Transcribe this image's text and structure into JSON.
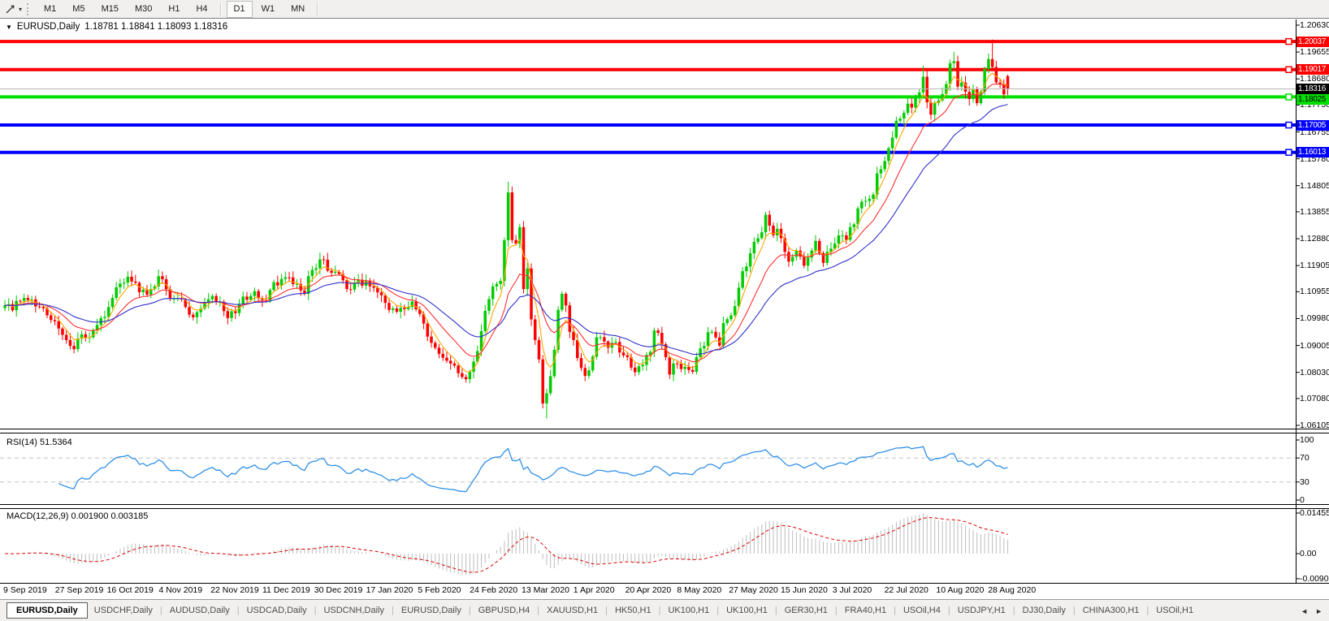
{
  "toolbar": {
    "timeframes": [
      "M1",
      "M5",
      "M15",
      "M30",
      "H1",
      "H4",
      "D1",
      "W1",
      "MN"
    ],
    "active_timeframe": "D1"
  },
  "chart_header": {
    "title": "EURUSD,Daily",
    "ohlc": "1.18781 1.18841 1.18093 1.18316"
  },
  "indicators": {
    "rsi_label": "RSI(14)",
    "rsi_value": "51.5364",
    "macd_label": "MACD(12,26,9)",
    "macd_value": "0.001900",
    "macd_signal": "0.003185"
  },
  "chart_data": {
    "type": "candlestick",
    "symbol": "EURUSD",
    "timeframe": "Daily",
    "last_ohlc": {
      "open": "1.18781",
      "high": "1.18841",
      "low": "1.18093",
      "close": "1.18316"
    },
    "colors": {
      "bull": "#00CC00",
      "bear": "#FF0000",
      "ma_fast": "#FFA500",
      "ma_mid": "#FF3030",
      "ma_slow": "#3030CC",
      "rsi": "#3090E8",
      "rsi_levels": "#C0C0C0",
      "macd_hist": "#BDBDBD",
      "macd_signal": "#DD0000",
      "bid_line": "#B8B8B8",
      "frame": "#000000"
    },
    "price_axis": {
      "max": 1.2063,
      "min": 1.06105,
      "ticks": [
        "1.20630",
        "1.19655",
        "1.18680",
        "1.17730",
        "1.16755",
        "1.15780",
        "1.14805",
        "1.13855",
        "1.12880",
        "1.11905",
        "1.10955",
        "1.09980",
        "1.09005",
        "1.08030",
        "1.07080",
        "1.06105"
      ]
    },
    "levels": [
      {
        "price": 1.20037,
        "label": "1.20037",
        "color": "#FF0000",
        "text_color": "#FFFFFF",
        "width": 4,
        "kind": "resistance"
      },
      {
        "price": 1.19017,
        "label": "1.19017",
        "color": "#FF0000",
        "text_color": "#FFFFFF",
        "width": 4,
        "kind": "resistance"
      },
      {
        "price": 1.18316,
        "label": "1.18316",
        "color": "#000000",
        "line_color": "#B8B8B8",
        "text_color": "#FFFFFF",
        "width": 1,
        "kind": "bid"
      },
      {
        "price": 1.18025,
        "label": "1.18025",
        "color": "#00E000",
        "text_color": "#000000",
        "width": 4,
        "kind": "support"
      },
      {
        "price": 1.17005,
        "label": "1.17005",
        "color": "#0000FF",
        "text_color": "#FFFFFF",
        "width": 4,
        "kind": "support"
      },
      {
        "price": 1.16013,
        "label": "1.16013",
        "color": "#0000FF",
        "text_color": "#FFFFFF",
        "width": 4,
        "kind": "support"
      }
    ],
    "x_ticks": [
      "9 Sep 2019",
      "27 Sep 2019",
      "16 Oct 2019",
      "4 Nov 2019",
      "22 Nov 2019",
      "11 Dec 2019",
      "30 Dec 2019",
      "17 Jan 2020",
      "5 Feb 2020",
      "24 Feb 2020",
      "13 Mar 2020",
      "1 Apr 2020",
      "20 Apr 2020",
      "8 May 2020",
      "27 May 2020",
      "15 Jun 2020",
      "3 Jul 2020",
      "22 Jul 2020",
      "10 Aug 2020",
      "28 Aug 2020"
    ],
    "bars": 262,
    "close_anchors": [
      [
        0,
        1.1046
      ],
      [
        2,
        1.1028
      ],
      [
        4,
        1.1062
      ],
      [
        5,
        1.1073
      ],
      [
        7,
        1.1068
      ],
      [
        9,
        1.104
      ],
      [
        11,
        1.101
      ],
      [
        12,
        1.0993
      ],
      [
        14,
        1.0962
      ],
      [
        16,
        1.092
      ],
      [
        17,
        1.0899
      ],
      [
        18,
        1.0887
      ],
      [
        20,
        1.0941
      ],
      [
        22,
        1.093
      ],
      [
        23,
        1.0957
      ],
      [
        25,
        1.1
      ],
      [
        27,
        1.104
      ],
      [
        28,
        1.1073
      ],
      [
        30,
        1.1125
      ],
      [
        32,
        1.115
      ],
      [
        34,
        1.1128
      ],
      [
        36,
        1.1103
      ],
      [
        37,
        1.1085
      ],
      [
        39,
        1.1115
      ],
      [
        40,
        1.1152
      ],
      [
        42,
        1.1105
      ],
      [
        43,
        1.107
      ],
      [
        45,
        1.1072
      ],
      [
        47,
        1.104
      ],
      [
        48,
        1.1012
      ],
      [
        50,
        1.1021
      ],
      [
        52,
        1.1055
      ],
      [
        53,
        1.1068
      ],
      [
        55,
        1.1058
      ],
      [
        57,
        1.1025
      ],
      [
        58,
        1.1
      ],
      [
        60,
        1.1018
      ],
      [
        62,
        1.1078
      ],
      [
        64,
        1.108
      ],
      [
        66,
        1.1072
      ],
      [
        67,
        1.1065
      ],
      [
        69,
        1.1102
      ],
      [
        70,
        1.113
      ],
      [
        72,
        1.1142
      ],
      [
        73,
        1.1148
      ],
      [
        75,
        1.1123
      ],
      [
        77,
        1.11
      ],
      [
        78,
        1.1088
      ],
      [
        80,
        1.1175
      ],
      [
        82,
        1.1213
      ],
      [
        84,
        1.1172
      ],
      [
        86,
        1.1168
      ],
      [
        87,
        1.116
      ],
      [
        89,
        1.1105
      ],
      [
        91,
        1.1125
      ],
      [
        92,
        1.1139
      ],
      [
        94,
        1.1136
      ],
      [
        96,
        1.111
      ],
      [
        97,
        1.1093
      ],
      [
        99,
        1.1055
      ],
      [
        101,
        1.1035
      ],
      [
        102,
        1.1023
      ],
      [
        104,
        1.1032
      ],
      [
        106,
        1.106
      ],
      [
        108,
        1.1015
      ],
      [
        109,
        1.098
      ],
      [
        111,
        1.091
      ],
      [
        113,
        1.087
      ],
      [
        115,
        1.0845
      ],
      [
        116,
        1.0835
      ],
      [
        118,
        1.08
      ],
      [
        119,
        1.0786
      ],
      [
        121,
        1.0805
      ],
      [
        123,
        1.088
      ],
      [
        125,
        1.1026
      ],
      [
        127,
        1.1115
      ],
      [
        129,
        1.1135
      ],
      [
        131,
        1.1456
      ],
      [
        132,
        1.1283
      ],
      [
        133,
        1.127
      ],
      [
        134,
        1.133
      ],
      [
        135,
        1.1105
      ],
      [
        136,
        1.118
      ],
      [
        137,
        1.0995
      ],
      [
        138,
        1.092
      ],
      [
        139,
        1.085
      ],
      [
        140,
        1.069
      ],
      [
        141,
        1.0727
      ],
      [
        142,
        1.0789
      ],
      [
        143,
        1.0885
      ],
      [
        144,
        1.103
      ],
      [
        145,
        1.1088
      ],
      [
        146,
        1.1046
      ],
      [
        147,
        1.095
      ],
      [
        148,
        1.092
      ],
      [
        149,
        1.0855
      ],
      [
        151,
        1.079
      ],
      [
        153,
        1.086
      ],
      [
        154,
        1.093
      ],
      [
        156,
        1.0915
      ],
      [
        158,
        1.091
      ],
      [
        160,
        1.0875
      ],
      [
        162,
        1.0858
      ],
      [
        163,
        1.082
      ],
      [
        165,
        1.0825
      ],
      [
        166,
        1.083
      ],
      [
        168,
        1.0877
      ],
      [
        169,
        1.0955
      ],
      [
        171,
        1.0905
      ],
      [
        173,
        1.0795
      ],
      [
        174,
        1.0835
      ],
      [
        176,
        1.0815
      ],
      [
        179,
        1.0805
      ],
      [
        181,
        1.089
      ],
      [
        184,
        1.095
      ],
      [
        186,
        1.09
      ],
      [
        187,
        1.0982
      ],
      [
        189,
        1.101
      ],
      [
        191,
        1.111
      ],
      [
        192,
        1.117
      ],
      [
        194,
        1.1235
      ],
      [
        196,
        1.129
      ],
      [
        198,
        1.1375
      ],
      [
        200,
        1.13
      ],
      [
        201,
        1.1324
      ],
      [
        203,
        1.124
      ],
      [
        204,
        1.1205
      ],
      [
        206,
        1.1245
      ],
      [
        208,
        1.119
      ],
      [
        209,
        1.122
      ],
      [
        211,
        1.128
      ],
      [
        213,
        1.12
      ],
      [
        214,
        1.124
      ],
      [
        216,
        1.127
      ],
      [
        218,
        1.13
      ],
      [
        219,
        1.1284
      ],
      [
        221,
        1.134
      ],
      [
        222,
        1.1398
      ],
      [
        224,
        1.1425
      ],
      [
        226,
        1.1448
      ],
      [
        227,
        1.1525
      ],
      [
        229,
        1.157
      ],
      [
        231,
        1.1655
      ],
      [
        232,
        1.1716
      ],
      [
        234,
        1.1745
      ],
      [
        235,
        1.1778
      ],
      [
        236,
        1.1764
      ],
      [
        237,
        1.1803
      ],
      [
        239,
        1.1876
      ],
      [
        240,
        1.1783
      ],
      [
        241,
        1.1738
      ],
      [
        243,
        1.179
      ],
      [
        244,
        1.1813
      ],
      [
        246,
        1.1925
      ],
      [
        247,
        1.1932
      ],
      [
        248,
        1.184
      ],
      [
        249,
        1.1855
      ],
      [
        251,
        1.1795
      ],
      [
        252,
        1.1833
      ],
      [
        253,
        1.178
      ],
      [
        254,
        1.1822
      ],
      [
        255,
        1.1904
      ],
      [
        256,
        1.194
      ],
      [
        257,
        1.1911
      ],
      [
        258,
        1.1855
      ],
      [
        259,
        1.185
      ],
      [
        260,
        1.1812
      ],
      [
        261,
        1.18316
      ]
    ],
    "open_overrides": {
      "261": 1.18781
    },
    "wick_overrides": {
      "119": {
        "l": 1.0778
      },
      "131": {
        "h": 1.1495
      },
      "140": {
        "l": 1.0672
      },
      "141": {
        "l": 1.0636
      },
      "239": {
        "h": 1.1916
      },
      "247": {
        "h": 1.1966
      },
      "257": {
        "h": 1.2011
      },
      "261": {
        "h": 1.18841,
        "l": 1.18093
      }
    },
    "moving_averages": [
      {
        "type": "ema",
        "period": 5,
        "color_key": "ma_fast"
      },
      {
        "type": "ema",
        "period": 14,
        "color_key": "ma_mid"
      },
      {
        "type": "ema",
        "period": 30,
        "color_key": "ma_slow"
      }
    ],
    "rsi": {
      "period": 14,
      "value": 51.5364,
      "upper": 70,
      "lower": 30,
      "axis_ticks": [
        {
          "v": 100,
          "label": "100"
        },
        {
          "v": 70,
          "label": "70"
        },
        {
          "v": 30,
          "label": "30"
        },
        {
          "v": 0,
          "label": "0"
        }
      ]
    },
    "macd": {
      "fast": 12,
      "slow": 26,
      "signal": 9,
      "value": 0.0019,
      "signal_value": 0.003185,
      "axis_ticks": [
        {
          "v": 0.014556,
          "label": "0.014556"
        },
        {
          "v": 0,
          "label": "0.00"
        },
        {
          "v": -0.009,
          "label": "-0.00900"
        }
      ]
    }
  },
  "tabs": {
    "items": [
      "EURUSD,Daily",
      "USDCHF,Daily",
      "AUDUSD,Daily",
      "USDCAD,Daily",
      "USDCNH,Daily",
      "EURUSD,Daily",
      "GBPUSD,H4",
      "XAUUSD,H1",
      "HK50,H1",
      "UK100,H1",
      "UK100,H1",
      "GER30,H1",
      "FRA40,H1",
      "USOil,H4",
      "USDJPY,H1",
      "DJ30,Daily",
      "CHINA300,H1",
      "USOil,H1"
    ],
    "active_index": 0
  }
}
